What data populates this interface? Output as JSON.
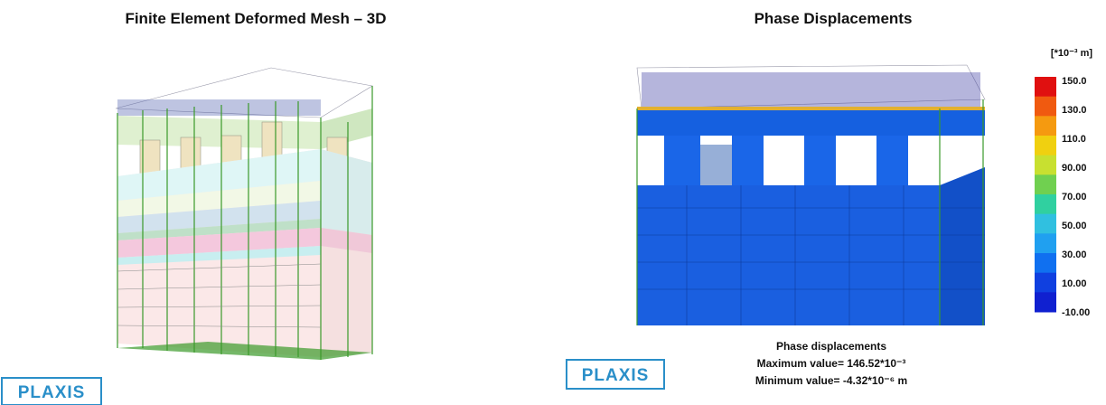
{
  "left_panel": {
    "title": "Finite Element Deformed Mesh – 3D",
    "logo": "PLAXIS"
  },
  "right_panel": {
    "title": "Phase Displacements",
    "logo": "PLAXIS",
    "legend": {
      "unit": "[*10⁻³ m]",
      "labels": [
        "150.0",
        "130.0",
        "110.0",
        "90.00",
        "70.00",
        "50.00",
        "30.00",
        "10.00",
        "-10.00"
      ]
    },
    "caption": {
      "heading": "Phase displacements",
      "max": "Maximum value= 146.52*10⁻³",
      "min": "Minimum value= -4.32*10⁻⁶ m"
    }
  }
}
